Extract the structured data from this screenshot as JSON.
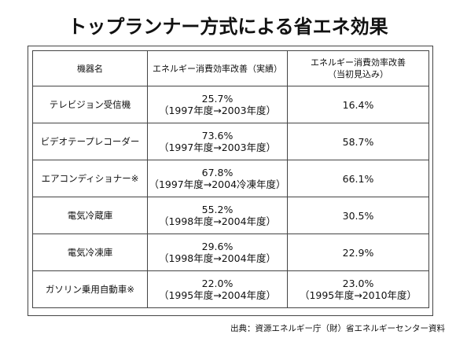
{
  "title": "トップランナー方式による省エネ効果",
  "table": {
    "headers": [
      {
        "line1": "機器名",
        "line2": ""
      },
      {
        "line1": "エネルギー消費効率改善（実績）",
        "line2": ""
      },
      {
        "line1": "エネルギー消費効率改善",
        "line2": "（当初見込み）"
      }
    ],
    "rows": [
      {
        "name": "テレビジョン受信機",
        "actual": {
          "value": "25.7%",
          "period": "（1997年度→2003年度）"
        },
        "expected": {
          "value": "16.4%",
          "period": ""
        }
      },
      {
        "name": "ビデオテープレコーダー",
        "actual": {
          "value": "73.6%",
          "period": "（1997年度→2003年度）"
        },
        "expected": {
          "value": "58.7%",
          "period": ""
        }
      },
      {
        "name": "エアコンディショナー※",
        "actual": {
          "value": "67.8%",
          "period": "（1997年度→2004冷凍年度）"
        },
        "expected": {
          "value": "66.1%",
          "period": ""
        }
      },
      {
        "name": "電気冷蔵庫",
        "actual": {
          "value": "55.2%",
          "period": "（1998年度→2004年度）"
        },
        "expected": {
          "value": "30.5%",
          "period": ""
        }
      },
      {
        "name": "電気冷凍庫",
        "actual": {
          "value": "29.6%",
          "period": "（1998年度→2004年度）"
        },
        "expected": {
          "value": "22.9%",
          "period": ""
        }
      },
      {
        "name": "ガソリン乗用自動車※",
        "actual": {
          "value": "22.0%",
          "period": "（1995年度→2004年度）"
        },
        "expected": {
          "value": "23.0%",
          "period": "（1995年度→2010年度）"
        }
      }
    ]
  },
  "source": "出典：資源エネルギー庁（財）省エネルギーセンター資料"
}
